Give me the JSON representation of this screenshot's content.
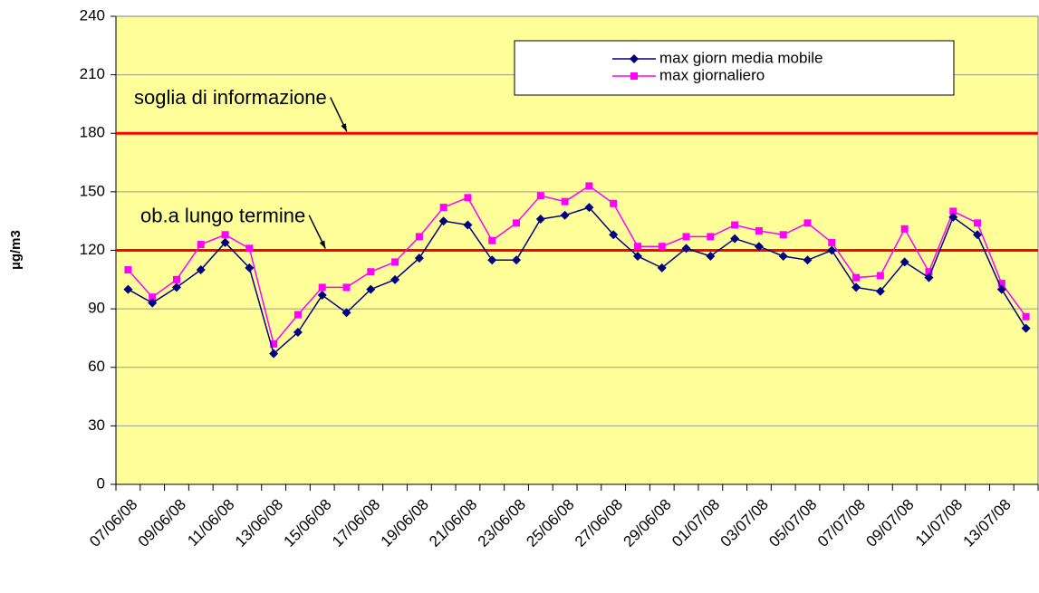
{
  "chart_data": {
    "type": "line",
    "y_label": "µg/m3",
    "categories": [
      "07/06/08",
      null,
      "09/06/08",
      null,
      "11/06/08",
      null,
      "13/06/08",
      null,
      "15/06/08",
      null,
      "17/06/08",
      null,
      "19/06/08",
      null,
      "21/06/08",
      null,
      "23/06/08",
      null,
      "25/06/08",
      null,
      "27/06/08",
      null,
      "29/06/08",
      null,
      "01/07/08",
      null,
      "03/07/08",
      null,
      "05/07/08",
      null,
      "07/07/08",
      null,
      "09/07/08",
      null,
      "11/07/08",
      null,
      "13/07/08",
      null
    ],
    "series": [
      {
        "name": "max giorn media mobile",
        "color": "#000080",
        "marker": "diamond",
        "values": [
          100,
          93,
          101,
          110,
          124,
          111,
          67,
          78,
          97,
          88,
          100,
          105,
          116,
          135,
          133,
          115,
          115,
          136,
          138,
          142,
          128,
          117,
          111,
          121,
          117,
          126,
          122,
          117,
          115,
          120,
          101,
          99,
          114,
          106,
          137,
          128,
          100,
          80
        ]
      },
      {
        "name": "max giornaliero",
        "color": "#FF00FF",
        "marker": "square",
        "values": [
          110,
          96,
          105,
          123,
          128,
          121,
          72,
          87,
          101,
          101,
          109,
          114,
          127,
          142,
          147,
          125,
          134,
          148,
          145,
          153,
          144,
          122,
          122,
          127,
          127,
          133,
          130,
          128,
          134,
          124,
          106,
          107,
          131,
          109,
          140,
          134,
          103,
          86
        ]
      }
    ],
    "reference_lines": [
      {
        "value": 180,
        "label": "soglia di informazione",
        "color": "#FF0000"
      },
      {
        "value": 120,
        "label": "ob.a lungo termine",
        "color": "#FF0000"
      }
    ],
    "ylim": [
      0,
      240
    ],
    "yticks": [
      0,
      30,
      60,
      90,
      120,
      150,
      180,
      210,
      240
    ],
    "grid": true,
    "legend": "top-right",
    "background": "#FFFF99"
  }
}
